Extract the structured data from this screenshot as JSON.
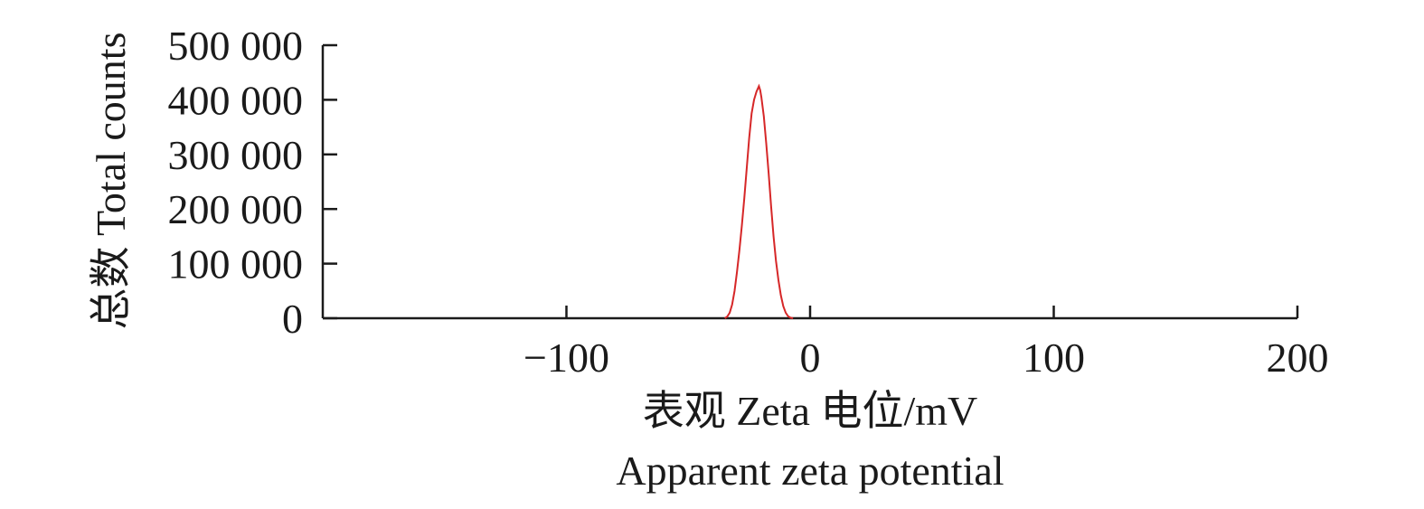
{
  "chart_data": {
    "type": "line",
    "title": "",
    "xlabel": "表观 Zeta 电位/mV",
    "xlabel_en": "Apparent zeta potential",
    "ylabel": "总数 Total counts",
    "xlim": [
      -200,
      200
    ],
    "ylim": [
      0,
      500000
    ],
    "x_ticks": [
      -100,
      0,
      100,
      200
    ],
    "x_tick_labels": [
      "−100",
      "0",
      "100",
      "200"
    ],
    "y_ticks": [
      0,
      100000,
      200000,
      300000,
      400000,
      500000
    ],
    "y_tick_labels": [
      "0",
      "100 000",
      "200 000",
      "300 000",
      "400 000",
      "500 000"
    ],
    "grid": false,
    "series": [
      {
        "color": "#d62728",
        "x": [
          -35,
          -34,
          -33,
          -32,
          -31,
          -30,
          -29,
          -28,
          -27,
          -26,
          -25,
          -24,
          -23,
          -22,
          -21.5,
          -21,
          -20.5,
          -20,
          -19,
          -18,
          -17,
          -16,
          -15,
          -14,
          -13,
          -12,
          -11,
          -10,
          -9,
          -8,
          -7
        ],
        "y": [
          0,
          3000,
          10000,
          25000,
          50000,
          85000,
          125000,
          170000,
          220000,
          275000,
          330000,
          375000,
          400000,
          415000,
          420000,
          425000,
          418000,
          405000,
          370000,
          320000,
          265000,
          205000,
          150000,
          105000,
          70000,
          42000,
          22000,
          10000,
          3500,
          800,
          0
        ]
      }
    ]
  }
}
